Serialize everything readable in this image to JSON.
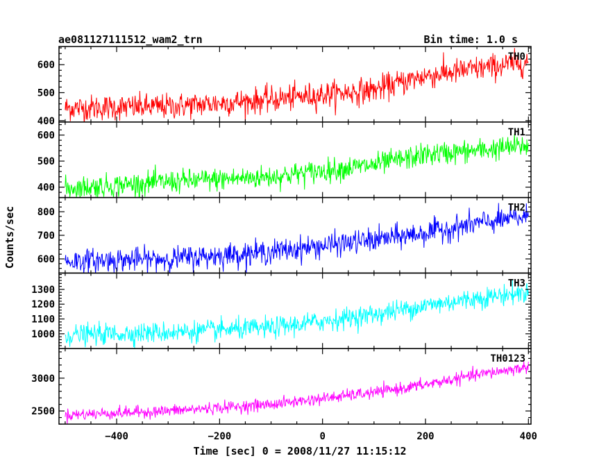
{
  "header": {
    "title": "ae081127111512_wam2_trn",
    "bin_time": "Bin time: 1.0 s"
  },
  "chart_data": {
    "type": "line",
    "xlabel": "Time [sec] 0 = 2008/11/27 11:15:12",
    "ylabel": "Counts/sec",
    "xlim": [
      -512,
      405
    ],
    "x_ticks": [
      -400,
      -200,
      0,
      200,
      400
    ],
    "x_tick_labels": [
      "−400",
      "−200",
      "0",
      "200",
      "400"
    ],
    "x_range": [
      -500,
      400
    ],
    "bin_time_s": 1.0,
    "panels": [
      {
        "name": "TH0",
        "color": "#ff0000",
        "ylim": [
          395,
          665
        ],
        "yticks": [
          400,
          500,
          600
        ],
        "ytick_labels": [
          "400",
          "500",
          "600"
        ],
        "trend": [
          [
            -500,
            445
          ],
          [
            -300,
            450
          ],
          [
            -100,
            475
          ],
          [
            100,
            510
          ],
          [
            200,
            560
          ],
          [
            300,
            585
          ],
          [
            400,
            610
          ]
        ],
        "noise_sd": 23
      },
      {
        "name": "TH1",
        "color": "#00ff00",
        "ylim": [
          360,
          650
        ],
        "yticks": [
          400,
          500,
          600
        ],
        "ytick_labels": [
          "400",
          "500",
          "600"
        ],
        "trend": [
          [
            -500,
            395
          ],
          [
            -300,
            420
          ],
          [
            -100,
            440
          ],
          [
            100,
            485
          ],
          [
            200,
            525
          ],
          [
            300,
            540
          ],
          [
            400,
            560
          ]
        ],
        "noise_sd": 22
      },
      {
        "name": "TH2",
        "color": "#0000ff",
        "ylim": [
          540,
          860
        ],
        "yticks": [
          600,
          700,
          800
        ],
        "ytick_labels": [
          "600",
          "700",
          "800"
        ],
        "trend": [
          [
            -500,
            590
          ],
          [
            -300,
            600
          ],
          [
            -100,
            630
          ],
          [
            100,
            680
          ],
          [
            200,
            710
          ],
          [
            300,
            750
          ],
          [
            400,
            780
          ]
        ],
        "noise_sd": 25
      },
      {
        "name": "TH3",
        "color": "#00ffff",
        "ylim": [
          900,
          1410
        ],
        "yticks": [
          1000,
          1100,
          1200,
          1300
        ],
        "ytick_labels": [
          "1000",
          "1100",
          "1200",
          "1300"
        ],
        "trend": [
          [
            -500,
            990
          ],
          [
            -300,
            1010
          ],
          [
            -100,
            1040
          ],
          [
            100,
            1130
          ],
          [
            200,
            1190
          ],
          [
            300,
            1240
          ],
          [
            400,
            1280
          ]
        ],
        "noise_sd": 35
      },
      {
        "name": "TH0123",
        "color": "#ff00ff",
        "ylim": [
          2300,
          3450
        ],
        "yticks": [
          2500,
          3000
        ],
        "ytick_labels": [
          "2500",
          "3000"
        ],
        "trend": [
          [
            -500,
            2440
          ],
          [
            -300,
            2500
          ],
          [
            -100,
            2600
          ],
          [
            100,
            2780
          ],
          [
            200,
            2900
          ],
          [
            300,
            3050
          ],
          [
            400,
            3170
          ]
        ],
        "noise_sd": 45
      }
    ]
  }
}
